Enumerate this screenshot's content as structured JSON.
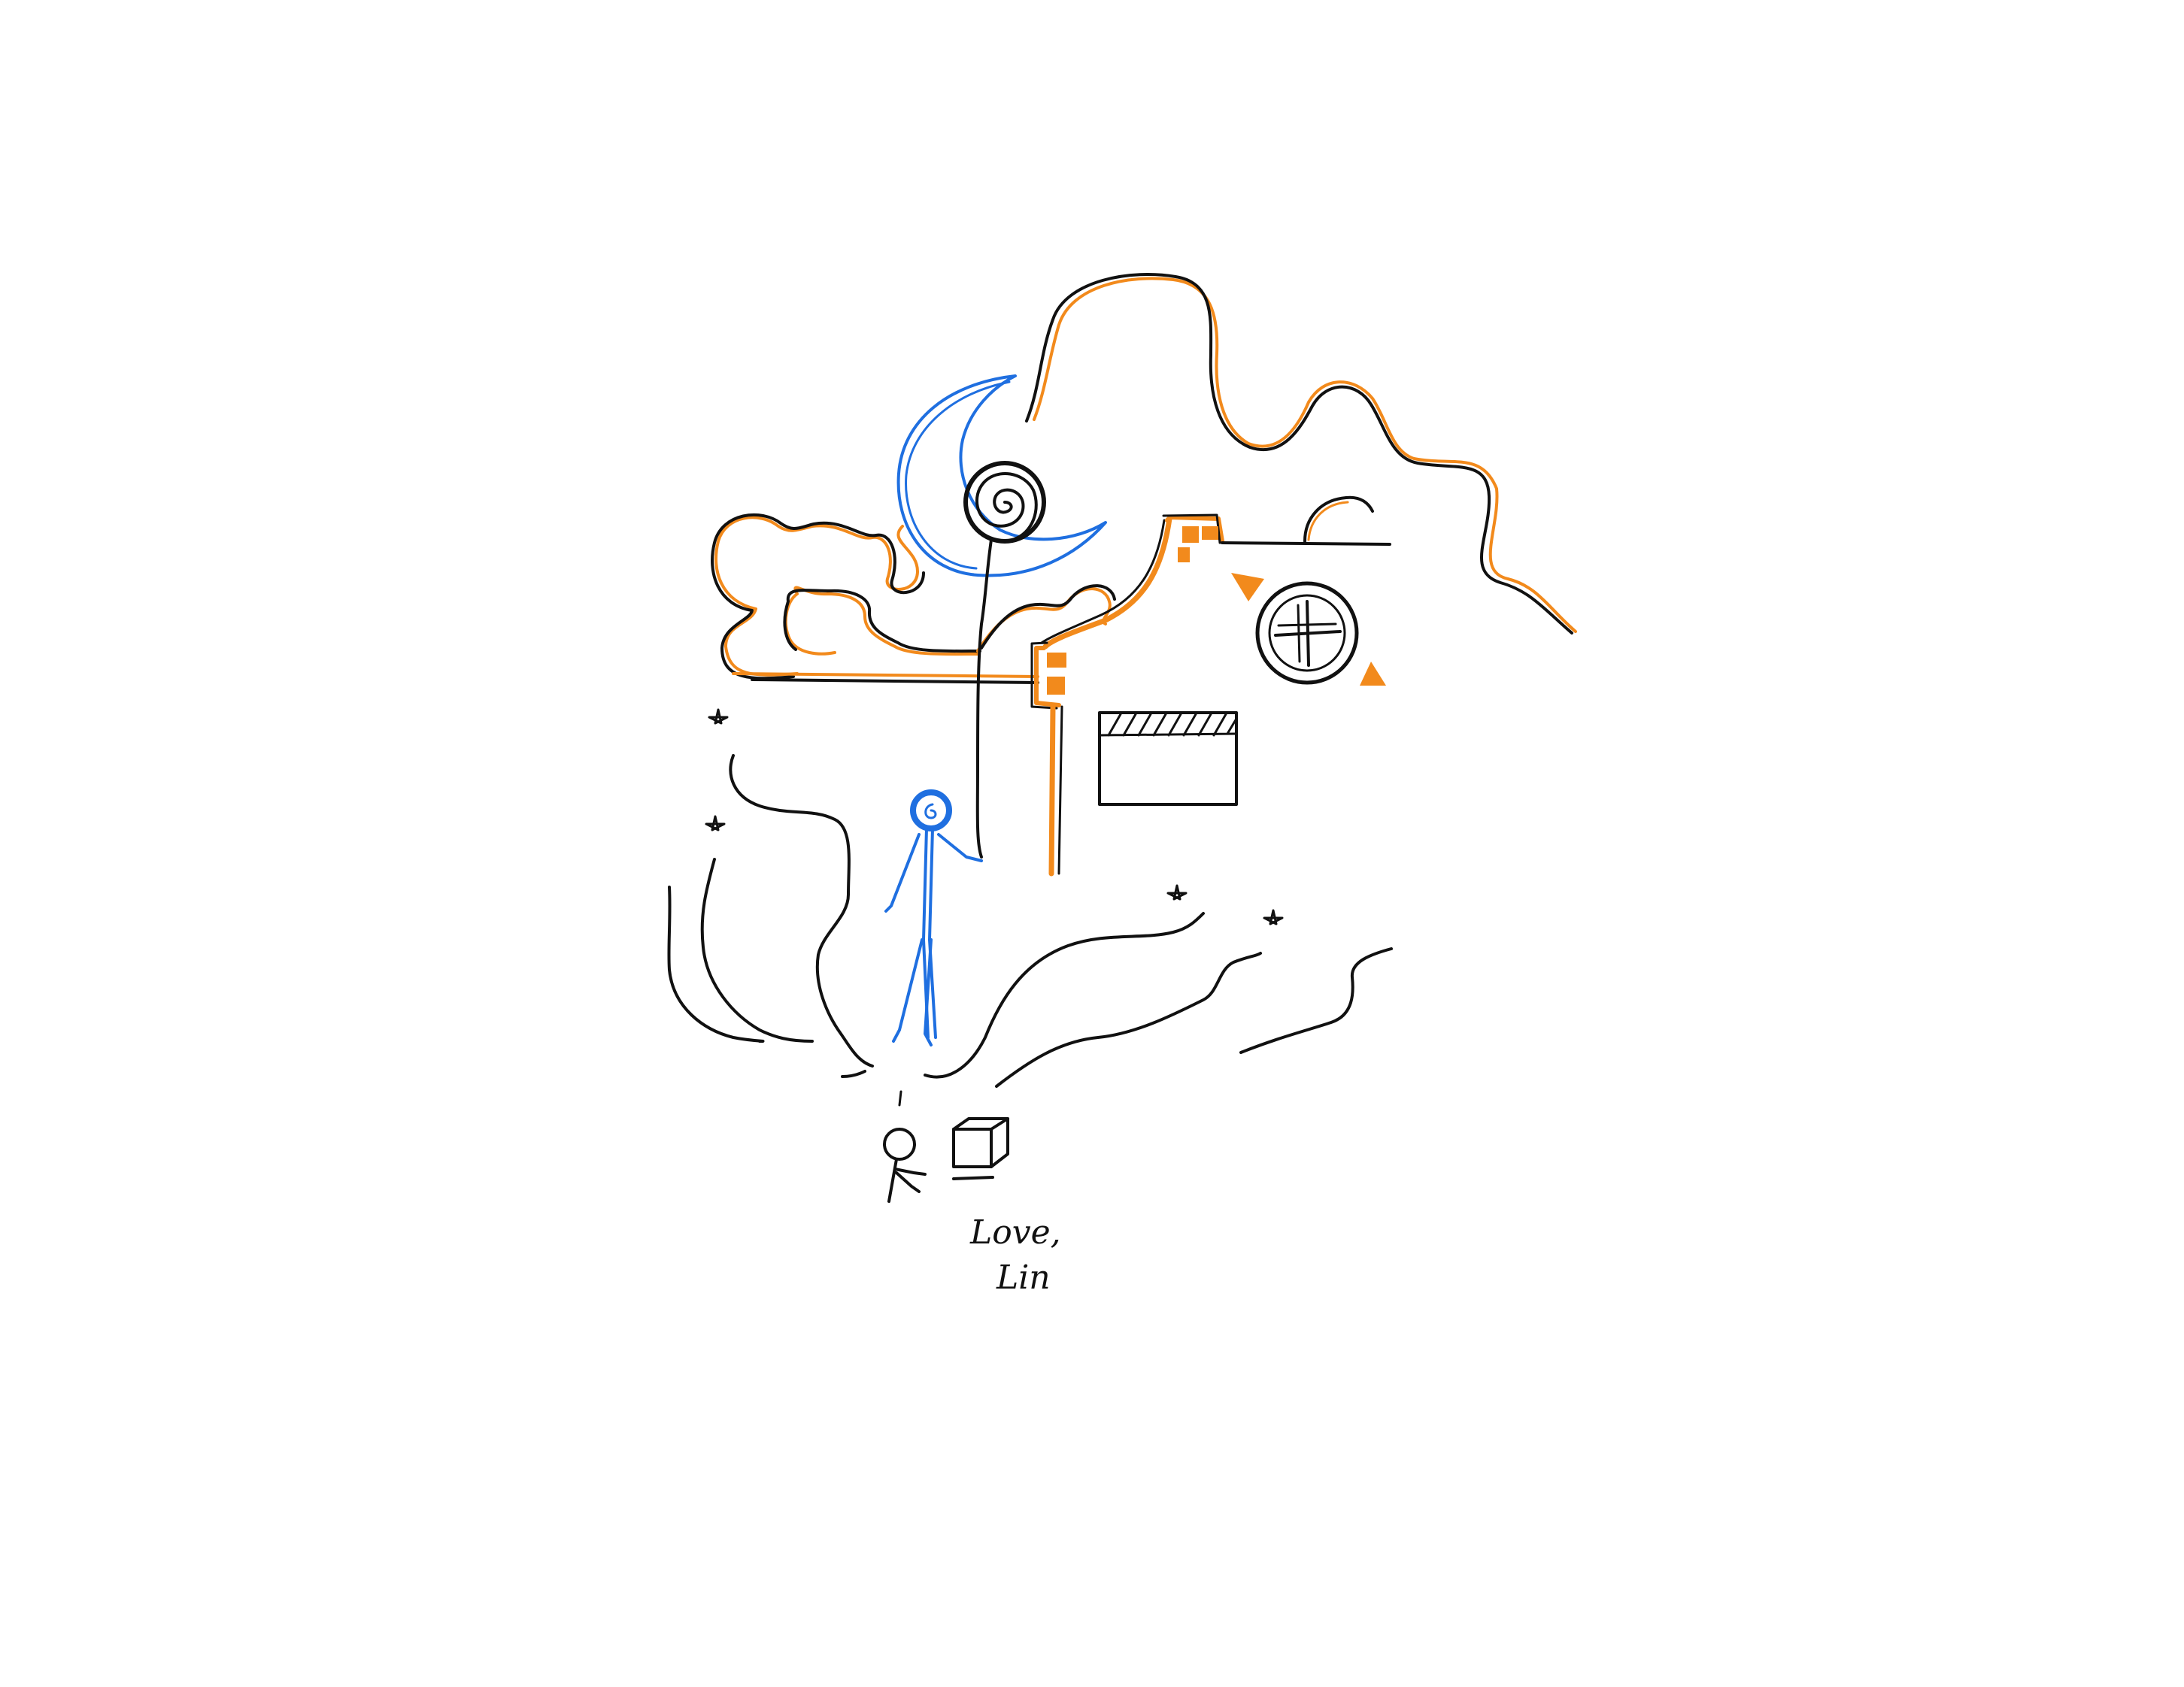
{
  "drawing": {
    "colors": {
      "black": "#111111",
      "orange": "#f28a1c",
      "blue": "#1f6fe0",
      "background": "#ffffff"
    },
    "signature": {
      "line1": "Love,",
      "line2": "Lin"
    }
  }
}
